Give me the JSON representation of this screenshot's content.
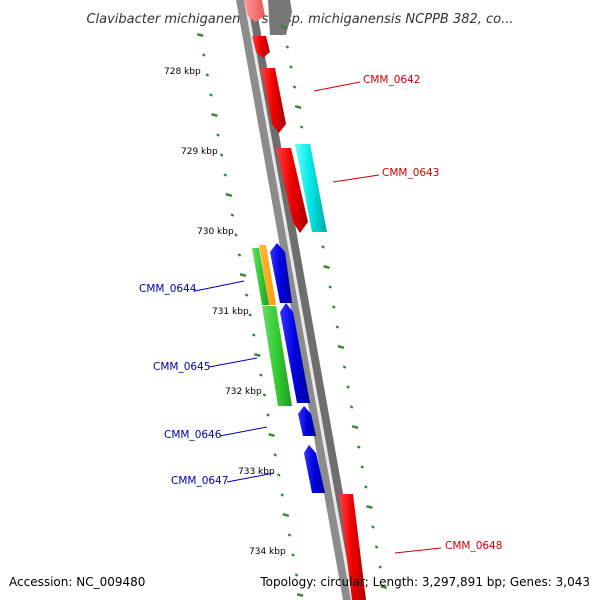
{
  "title": "Clavibacter michiganensis subsp. michiganensis NCPPB 382, co...",
  "footer": {
    "accession": "Accession: NC_009480",
    "summary": "Topology: circular; Length: 3,297,891 bp; Genes: 3,043"
  },
  "colors": {
    "backbone": "#808080",
    "tick": "#2e8b2e",
    "forward_label": "#cc0000",
    "reverse_label": "#0000aa",
    "red": "#ee0000",
    "cyan": "#00e5e5",
    "blue": "#0000dd",
    "green": "#33cc33",
    "orange": "#ff9900"
  },
  "scale_labels": [
    "728 kbp",
    "729 kbp",
    "730 kbp",
    "731 kbp",
    "732 kbp",
    "733 kbp",
    "734 kbp"
  ],
  "gene_labels": {
    "cmm_0642": "CMM_0642",
    "cmm_0643": "CMM_0643",
    "cmm_0644": "CMM_0644",
    "cmm_0645": "CMM_0645",
    "cmm_0646": "CMM_0646",
    "cmm_0647": "CMM_0647",
    "cmm_0648": "CMM_0648"
  }
}
